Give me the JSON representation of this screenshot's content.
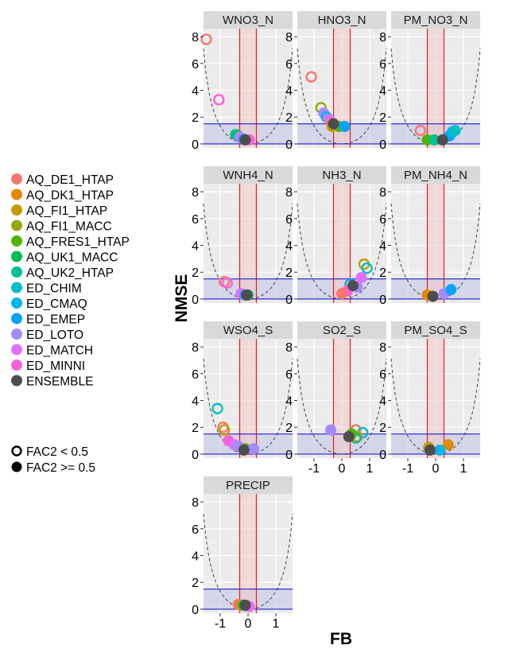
{
  "chart_data": {
    "type": "scatter",
    "xlabel": "FB",
    "ylabel": "NMSE",
    "xlim": [
      -1.6,
      1.6
    ],
    "ylim": [
      -0.3,
      8.6
    ],
    "x_ticks": [
      -1,
      0,
      1
    ],
    "y_ticks": [
      0,
      2,
      4,
      6,
      8
    ],
    "reference_lines": {
      "vertical_fb": [
        -0.3,
        0.3
      ],
      "horizontal_nmse": 1.5,
      "parabola": "NMSE = 4*FB^2/(4-FB^2)"
    },
    "series": [
      {
        "name": "AQ_DE1_HTAP",
        "color": "#F8766D"
      },
      {
        "name": "AQ_DK1_HTAP",
        "color": "#E38900"
      },
      {
        "name": "AQ_FI1_HTAP",
        "color": "#C49A00"
      },
      {
        "name": "AQ_FI1_MACC",
        "color": "#99A800"
      },
      {
        "name": "AQ_FRES1_HTAP",
        "color": "#53B400"
      },
      {
        "name": "AQ_UK1_MACC",
        "color": "#00BC56"
      },
      {
        "name": "AQ_UK2_HTAP",
        "color": "#00C094"
      },
      {
        "name": "ED_CHIM",
        "color": "#00BFC4"
      },
      {
        "name": "ED_CMAQ",
        "color": "#00B6EB"
      },
      {
        "name": "ED_EMEP",
        "color": "#06A4FF"
      },
      {
        "name": "ED_LOTO",
        "color": "#A58AFF"
      },
      {
        "name": "ED_MATCH",
        "color": "#DF70F8"
      },
      {
        "name": "ED_MINNI",
        "color": "#FB61D7"
      },
      {
        "name": "ENSEMBLE",
        "color": "#4D4D4D"
      }
    ],
    "shape_legend": [
      {
        "label": "FAC2 < 0.5",
        "filled": false
      },
      {
        "label": "FAC2 >= 0.5",
        "filled": true
      }
    ],
    "panels": [
      {
        "title": "WNO3_N",
        "points": [
          {
            "s": 0,
            "fb": -1.5,
            "nmse": 7.8,
            "f": 0
          },
          {
            "s": 12,
            "fb": -1.05,
            "nmse": 3.3,
            "f": 0
          },
          {
            "s": 6,
            "fb": -0.45,
            "nmse": 0.7,
            "f": 1
          },
          {
            "s": 5,
            "fb": -0.35,
            "nmse": 0.6,
            "f": 1
          },
          {
            "s": 10,
            "fb": -0.3,
            "nmse": 0.5,
            "f": 1
          },
          {
            "s": 11,
            "fb": -0.2,
            "nmse": 0.4,
            "f": 1
          },
          {
            "s": 9,
            "fb": -0.15,
            "nmse": 0.35,
            "f": 1
          },
          {
            "s": 12,
            "fb": 0.05,
            "nmse": 0.3,
            "f": 1
          },
          {
            "s": 13,
            "fb": -0.1,
            "nmse": 0.3,
            "f": 1
          }
        ]
      },
      {
        "title": "HNO3_N",
        "points": [
          {
            "s": 0,
            "fb": -1.1,
            "nmse": 5.0,
            "f": 0
          },
          {
            "s": 3,
            "fb": -0.75,
            "nmse": 2.7,
            "f": 0
          },
          {
            "s": 10,
            "fb": -0.65,
            "nmse": 2.3,
            "f": 1
          },
          {
            "s": 8,
            "fb": -0.55,
            "nmse": 2.0,
            "f": 0
          },
          {
            "s": 11,
            "fb": -0.45,
            "nmse": 1.8,
            "f": 1
          },
          {
            "s": 1,
            "fb": -0.35,
            "nmse": 1.5,
            "f": 1
          },
          {
            "s": 2,
            "fb": -0.35,
            "nmse": 1.3,
            "f": 1
          },
          {
            "s": 4,
            "fb": -0.1,
            "nmse": 1.3,
            "f": 1
          },
          {
            "s": 9,
            "fb": 0.1,
            "nmse": 1.3,
            "f": 1
          },
          {
            "s": 13,
            "fb": -0.3,
            "nmse": 1.5,
            "f": 1
          }
        ]
      },
      {
        "title": "PM_NO3_N",
        "points": [
          {
            "s": 0,
            "fb": -0.55,
            "nmse": 1.0,
            "f": 0
          },
          {
            "s": 4,
            "fb": -0.3,
            "nmse": 0.3,
            "f": 1
          },
          {
            "s": 6,
            "fb": -0.05,
            "nmse": 0.3,
            "f": 1
          },
          {
            "s": 9,
            "fb": 0.5,
            "nmse": 0.6,
            "f": 1
          },
          {
            "s": 8,
            "fb": 0.6,
            "nmse": 0.9,
            "f": 1
          },
          {
            "s": 7,
            "fb": 0.7,
            "nmse": 1.0,
            "f": 1
          },
          {
            "s": 13,
            "fb": 0.25,
            "nmse": 0.3,
            "f": 1
          }
        ]
      },
      {
        "title": "WNH4_N",
        "points": [
          {
            "s": 0,
            "fb": -0.85,
            "nmse": 1.3,
            "f": 0
          },
          {
            "s": 12,
            "fb": -0.75,
            "nmse": 1.2,
            "f": 0
          },
          {
            "s": 11,
            "fb": -0.25,
            "nmse": 0.4,
            "f": 1
          },
          {
            "s": 9,
            "fb": -0.1,
            "nmse": 0.3,
            "f": 1
          },
          {
            "s": 5,
            "fb": 0.0,
            "nmse": 0.3,
            "f": 1
          },
          {
            "s": 13,
            "fb": -0.05,
            "nmse": 0.3,
            "f": 1
          }
        ]
      },
      {
        "title": "NH3_N",
        "points": [
          {
            "s": 2,
            "fb": 0.8,
            "nmse": 2.6,
            "f": 0
          },
          {
            "s": 7,
            "fb": 0.9,
            "nmse": 2.3,
            "f": 0
          },
          {
            "s": 11,
            "fb": 0.7,
            "nmse": 1.6,
            "f": 1
          },
          {
            "s": 9,
            "fb": 0.3,
            "nmse": 1.1,
            "f": 0
          },
          {
            "s": 10,
            "fb": 0.55,
            "nmse": 0.9,
            "f": 1
          },
          {
            "s": 12,
            "fb": 0.2,
            "nmse": 0.6,
            "f": 1
          },
          {
            "s": 0,
            "fb": 0.0,
            "nmse": 0.4,
            "f": 1
          },
          {
            "s": 13,
            "fb": 0.4,
            "nmse": 1.0,
            "f": 1
          }
        ]
      },
      {
        "title": "PM_NH4_N",
        "points": [
          {
            "s": 1,
            "fb": -0.3,
            "nmse": 0.3,
            "f": 1
          },
          {
            "s": 4,
            "fb": -0.1,
            "nmse": 0.2,
            "f": 1
          },
          {
            "s": 10,
            "fb": 0.3,
            "nmse": 0.4,
            "f": 1
          },
          {
            "s": 9,
            "fb": 0.55,
            "nmse": 0.7,
            "f": 1
          },
          {
            "s": 13,
            "fb": -0.1,
            "nmse": 0.2,
            "f": 1
          }
        ]
      },
      {
        "title": "WSO4_S",
        "points": [
          {
            "s": 7,
            "fb": -1.1,
            "nmse": 3.4,
            "f": 0
          },
          {
            "s": 0,
            "fb": -0.9,
            "nmse": 2.0,
            "f": 0
          },
          {
            "s": 2,
            "fb": -0.85,
            "nmse": 1.8,
            "f": 0
          },
          {
            "s": 12,
            "fb": -0.7,
            "nmse": 1.0,
            "f": 1
          },
          {
            "s": 11,
            "fb": -0.5,
            "nmse": 0.7,
            "f": 1
          },
          {
            "s": 10,
            "fb": -0.35,
            "nmse": 0.6,
            "f": 1
          },
          {
            "s": 4,
            "fb": -0.1,
            "nmse": 0.4,
            "f": 1
          },
          {
            "s": 10,
            "fb": 0.2,
            "nmse": 0.4,
            "f": 1
          },
          {
            "s": 13,
            "fb": -0.15,
            "nmse": 0.3,
            "f": 1
          }
        ]
      },
      {
        "title": "SO2_S",
        "points": [
          {
            "s": 10,
            "fb": -0.4,
            "nmse": 1.8,
            "f": 1
          },
          {
            "s": 0,
            "fb": 0.5,
            "nmse": 1.8,
            "f": 0
          },
          {
            "s": 7,
            "fb": 0.75,
            "nmse": 1.6,
            "f": 0
          },
          {
            "s": 2,
            "fb": 0.55,
            "nmse": 1.3,
            "f": 0
          },
          {
            "s": 6,
            "fb": 0.5,
            "nmse": 1.2,
            "f": 0
          },
          {
            "s": 4,
            "fb": 0.35,
            "nmse": 1.5,
            "f": 1
          },
          {
            "s": 13,
            "fb": 0.25,
            "nmse": 1.3,
            "f": 1
          }
        ]
      },
      {
        "title": "PM_SO4_S",
        "points": [
          {
            "s": 2,
            "fb": -0.25,
            "nmse": 0.5,
            "f": 1
          },
          {
            "s": 1,
            "fb": 0.45,
            "nmse": 0.7,
            "f": 1
          },
          {
            "s": 8,
            "fb": 0.15,
            "nmse": 0.3,
            "f": 1
          },
          {
            "s": 13,
            "fb": -0.2,
            "nmse": 0.3,
            "f": 1
          }
        ]
      },
      {
        "title": "PRECIP",
        "points": [
          {
            "s": 0,
            "fb": -0.35,
            "nmse": 0.35,
            "f": 1
          },
          {
            "s": 1,
            "fb": -0.25,
            "nmse": 0.3,
            "f": 1
          },
          {
            "s": 5,
            "fb": -0.15,
            "nmse": 0.3,
            "f": 1
          },
          {
            "s": 7,
            "fb": -0.05,
            "nmse": 0.25,
            "f": 1
          },
          {
            "s": 11,
            "fb": 0.05,
            "nmse": 0.2,
            "f": 1
          },
          {
            "s": 13,
            "fb": -0.1,
            "nmse": 0.3,
            "f": 1
          }
        ]
      }
    ]
  }
}
